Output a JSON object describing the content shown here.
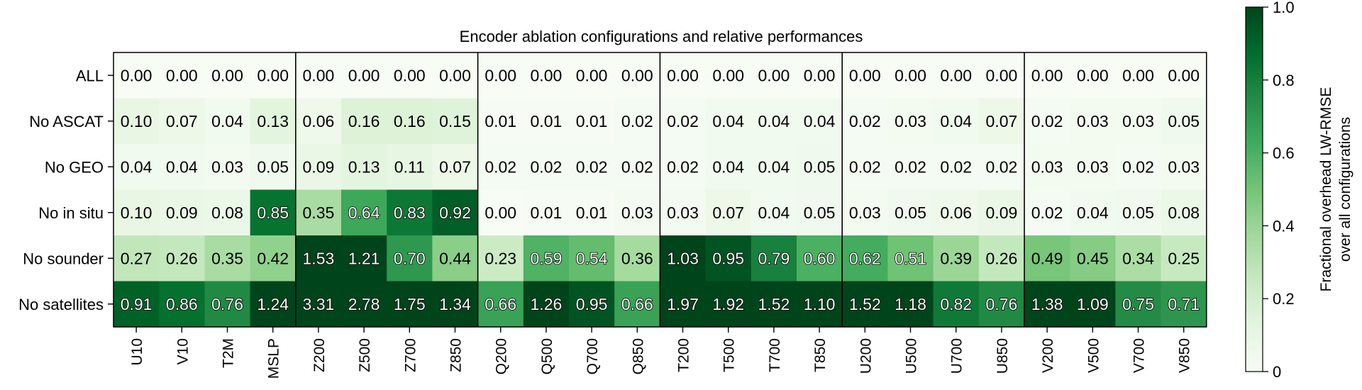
{
  "chart_data": {
    "type": "heatmap",
    "title": "Encoder ablation configurations and relative performances",
    "columns": [
      "U10",
      "V10",
      "T2M",
      "MSLP",
      "Z200",
      "Z500",
      "Z700",
      "Z850",
      "Q200",
      "Q500",
      "Q700",
      "Q850",
      "T200",
      "T500",
      "T700",
      "T850",
      "U200",
      "U500",
      "U700",
      "U850",
      "V200",
      "V500",
      "V700",
      "V850"
    ],
    "rows": [
      "ALL",
      "No ASCAT",
      "No GEO",
      "No in situ",
      "No sounder",
      "No satellites"
    ],
    "values": [
      [
        0.0,
        0.0,
        0.0,
        0.0,
        0.0,
        0.0,
        0.0,
        0.0,
        0.0,
        0.0,
        0.0,
        0.0,
        0.0,
        0.0,
        0.0,
        0.0,
        0.0,
        0.0,
        0.0,
        0.0,
        0.0,
        0.0,
        0.0,
        0.0
      ],
      [
        0.1,
        0.07,
        0.04,
        0.13,
        0.06,
        0.16,
        0.16,
        0.15,
        0.01,
        0.01,
        0.01,
        0.02,
        0.02,
        0.04,
        0.04,
        0.04,
        0.02,
        0.03,
        0.04,
        0.07,
        0.02,
        0.03,
        0.03,
        0.05
      ],
      [
        0.04,
        0.04,
        0.03,
        0.05,
        0.09,
        0.13,
        0.11,
        0.07,
        0.02,
        0.02,
        0.02,
        0.02,
        0.02,
        0.04,
        0.04,
        0.05,
        0.02,
        0.02,
        0.02,
        0.02,
        0.03,
        0.03,
        0.02,
        0.03
      ],
      [
        0.1,
        0.09,
        0.08,
        0.85,
        0.35,
        0.64,
        0.83,
        0.92,
        0.0,
        0.01,
        0.01,
        0.03,
        0.03,
        0.07,
        0.04,
        0.05,
        0.03,
        0.05,
        0.06,
        0.09,
        0.02,
        0.04,
        0.05,
        0.08
      ],
      [
        0.27,
        0.26,
        0.35,
        0.42,
        1.53,
        1.21,
        0.7,
        0.44,
        0.23,
        0.59,
        0.54,
        0.36,
        1.03,
        0.95,
        0.79,
        0.6,
        0.62,
        0.51,
        0.39,
        0.26,
        0.49,
        0.45,
        0.34,
        0.25
      ],
      [
        0.91,
        0.86,
        0.76,
        1.24,
        3.31,
        2.78,
        1.75,
        1.34,
        0.66,
        1.26,
        0.95,
        0.66,
        1.97,
        1.92,
        1.52,
        1.1,
        1.52,
        1.18,
        0.82,
        0.76,
        1.38,
        1.09,
        0.75,
        0.71
      ]
    ],
    "colorscale": {
      "name": "Greens",
      "range": [
        0,
        1
      ],
      "ticks": [
        "0",
        "0.2",
        "0.4",
        "0.6",
        "0.8",
        "1.0"
      ],
      "label_line1": "Fractional overhead LW-RMSE",
      "label_line2": "over all configurations",
      "colors": [
        "#f7fcf5",
        "#e5f5e0",
        "#c7e9c0",
        "#a1d99b",
        "#74c476",
        "#41ab5d",
        "#238b45",
        "#006d2c",
        "#00441b"
      ]
    },
    "group_size": 4,
    "grid": false
  }
}
